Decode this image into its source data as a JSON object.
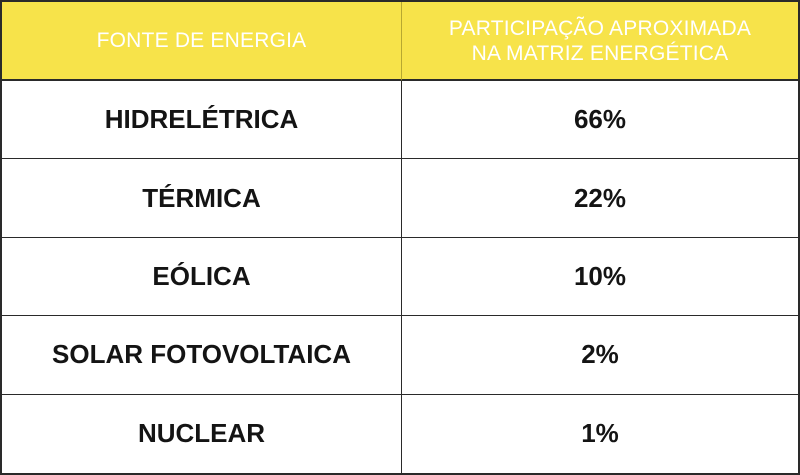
{
  "table": {
    "header": {
      "source_label": "FONTE DE ENERGIA",
      "share_label": "PARTICIPAÇÃO APROXIMADA\nNA MATRIZ ENERGÉTICA"
    },
    "rows": [
      {
        "source": "HIDRELÉTRICA",
        "share": "66%"
      },
      {
        "source": "TÉRMICA",
        "share": "22%"
      },
      {
        "source": "EÓLICA",
        "share": "10%"
      },
      {
        "source": "SOLAR FOTOVOLTAICA",
        "share": "2%"
      },
      {
        "source": "NUCLEAR",
        "share": "1%"
      }
    ]
  },
  "colors": {
    "header_background": "#f7e34a",
    "header_text": "#ffffff",
    "body_text": "#141414",
    "border": "#2a2a2a"
  }
}
